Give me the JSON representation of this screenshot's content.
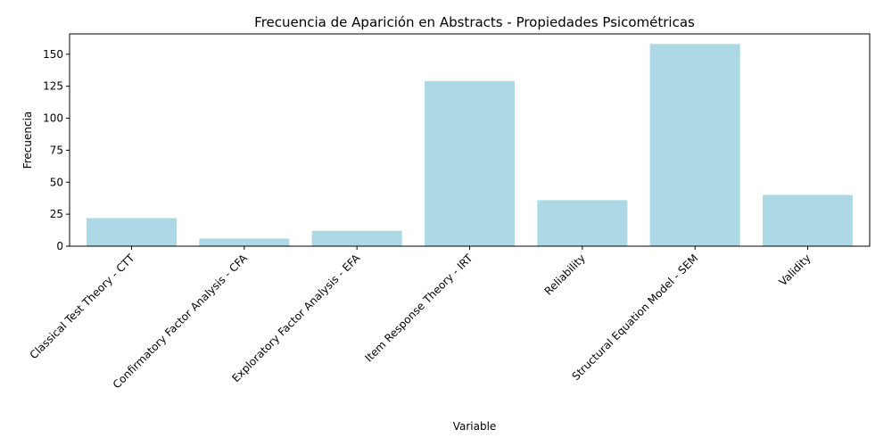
{
  "chart_data": {
    "type": "bar",
    "title": "Frecuencia de Aparición en Abstracts - Propiedades Psicométricas",
    "xlabel": "Variable",
    "ylabel": "Frecuencia",
    "categories": [
      "Classical Test Theory - CTT",
      "Confirmatory Factor Analysis - CFA",
      "Exploratory Factor Analysis - EFA",
      "Item Response Theory - IRT",
      "Reliability",
      "Structural Equation Model - SEM",
      "Validity"
    ],
    "values": [
      22,
      6,
      12,
      129,
      36,
      158,
      40
    ],
    "ylim": [
      0,
      165.9
    ],
    "yticks": [
      0,
      25,
      50,
      75,
      100,
      125,
      150
    ],
    "grid": false,
    "legend": false,
    "bar_color": "#add8e6"
  }
}
